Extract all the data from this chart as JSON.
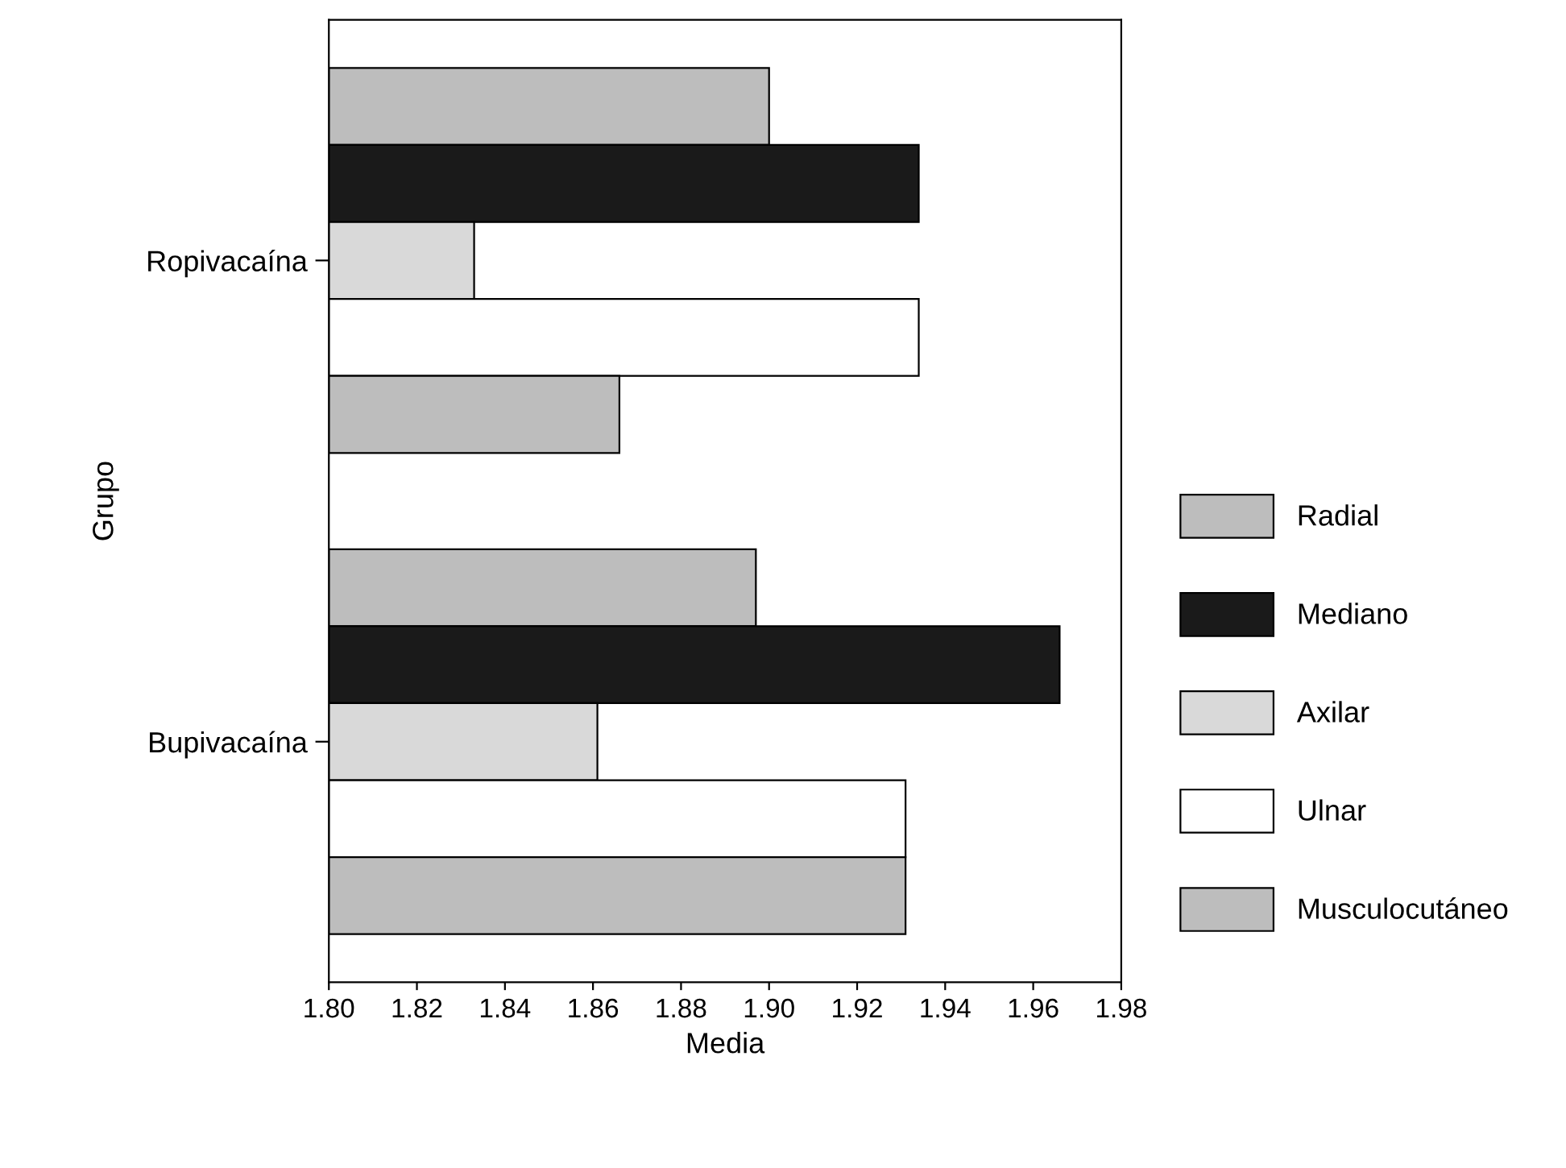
{
  "chart_data": {
    "type": "bar",
    "orientation": "horizontal",
    "xlabel": "Media",
    "ylabel": "Grupo",
    "categories": [
      "Ropivacaína",
      "Bupivacaína"
    ],
    "series": [
      {
        "name": "Radial",
        "color": "#bdbdbd",
        "values": [
          1.9,
          1.897
        ]
      },
      {
        "name": "Mediano",
        "color": "#1a1a1a",
        "values": [
          1.934,
          1.966
        ]
      },
      {
        "name": "Axilar",
        "color": "#d9d9d9",
        "values": [
          1.833,
          1.861
        ]
      },
      {
        "name": "Ulnar",
        "color": "#ffffff",
        "values": [
          1.934,
          1.931
        ]
      },
      {
        "name": "Musculocutáneo",
        "color": "#bdbdbd",
        "values": [
          1.866,
          1.931
        ]
      }
    ],
    "xlim": [
      1.8,
      1.98
    ],
    "xticks": [
      {
        "value": 1.8,
        "label": "1.80"
      },
      {
        "value": 1.82,
        "label": "1.82"
      },
      {
        "value": 1.84,
        "label": "1.84"
      },
      {
        "value": 1.86,
        "label": "1.86"
      },
      {
        "value": 1.88,
        "label": "1.88"
      },
      {
        "value": 1.9,
        "label": "1.90"
      },
      {
        "value": 1.92,
        "label": "1.92"
      },
      {
        "value": 1.94,
        "label": "1.94"
      },
      {
        "value": 1.96,
        "label": "1.96"
      },
      {
        "value": 1.98,
        "label": "1.98"
      }
    ],
    "grid": false,
    "legend": "right"
  }
}
